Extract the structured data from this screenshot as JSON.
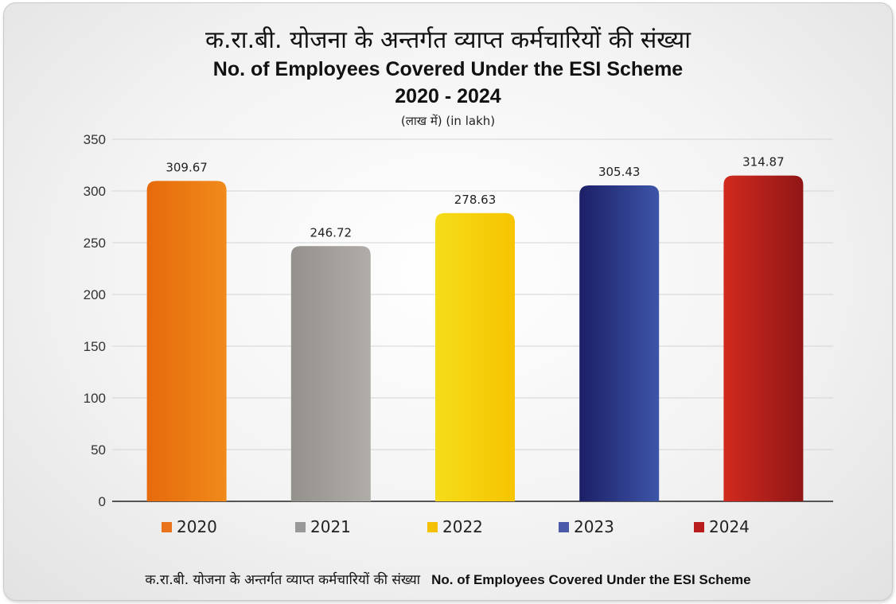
{
  "title_hindi": "क.रा.बी. योजना के अन्तर्गत व्याप्त कर्मचारियों की संख्या",
  "title_english": "No. of Employees Covered Under the ESI Scheme",
  "title_years": "2020 - 2024",
  "unit_label": "(लाख में)  (in lakh)",
  "footer_hindi": "क.रा.बी. योजना के अन्तर्गत व्याप्त कर्मचारियों की संख्या",
  "footer_english": "No. of Employees Covered Under the ESI Scheme",
  "chart_data": {
    "type": "bar",
    "title": "No. of Employees Covered Under the ESI Scheme",
    "categories": [
      "2020",
      "2021",
      "2022",
      "2023",
      "2024"
    ],
    "values": [
      309.67,
      246.72,
      278.63,
      305.43,
      314.87
    ],
    "data_labels": [
      "309.67",
      "246.72",
      "278.63",
      "305.43",
      "314.87"
    ],
    "ylim": [
      0,
      350
    ],
    "yticks": [
      0,
      50,
      100,
      150,
      200,
      250,
      300,
      350
    ],
    "grid": true,
    "legend_position": "bottom",
    "colors": [
      {
        "light": "#f08a1a",
        "dark": "#e66a0c"
      },
      {
        "light": "#b0ada8",
        "dark": "#94918c"
      },
      {
        "light": "#f7c400",
        "dark": "#f5dc1a"
      },
      {
        "light": "#3d55a8",
        "dark": "#1c1f66"
      },
      {
        "light": "#8f1616",
        "dark": "#d22a1e"
      }
    ],
    "legend_colors": [
      "#e8731a",
      "#999999",
      "#f5c000",
      "#4a5aa8",
      "#b81c1c"
    ]
  }
}
